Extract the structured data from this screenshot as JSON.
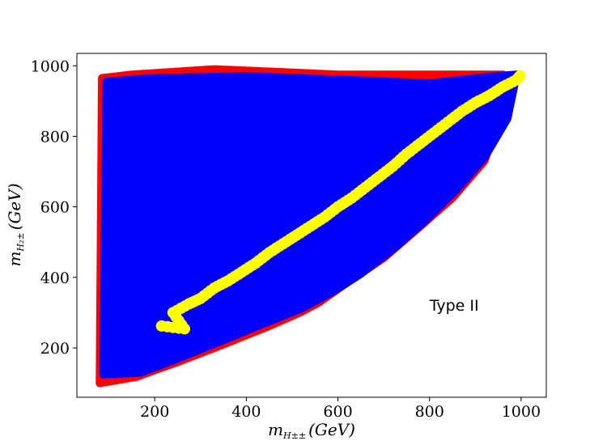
{
  "chart_data": {
    "type": "scatter",
    "title": "",
    "xlabel": {
      "base": "m",
      "sub": "H±±",
      "unit": "(GeV)"
    },
    "ylabel": {
      "base": "m",
      "sub": "H₂±",
      "unit": "(GeV)"
    },
    "xlim": [
      30,
      1055
    ],
    "ylim": [
      60,
      1035
    ],
    "xticks": [
      200,
      400,
      600,
      800,
      1000
    ],
    "yticks": [
      200,
      400,
      600,
      800,
      1000
    ],
    "grid": false,
    "legend": null,
    "annotation": {
      "text": "Type II",
      "x": 800,
      "y": 305
    },
    "series": [
      {
        "color": "#ff0000",
        "description": "filled region (back layer)",
        "region": [
          [
            80,
            100
          ],
          [
            160,
            118
          ],
          [
            250,
            160
          ],
          [
            350,
            210
          ],
          [
            450,
            262
          ],
          [
            520,
            302
          ],
          [
            560,
            330
          ],
          [
            620,
            385
          ],
          [
            700,
            455
          ],
          [
            780,
            545
          ],
          [
            850,
            625
          ],
          [
            920,
            730
          ],
          [
            980,
            960
          ],
          [
            960,
            975
          ],
          [
            600,
            975
          ],
          [
            330,
            990
          ],
          [
            150,
            975
          ],
          [
            85,
            965
          ]
        ]
      },
      {
        "color": "#0000ff",
        "description": "filled region (middle layer)",
        "region": [
          [
            88,
            125
          ],
          [
            170,
            130
          ],
          [
            260,
            175
          ],
          [
            350,
            222
          ],
          [
            440,
            270
          ],
          [
            520,
            312
          ],
          [
            590,
            360
          ],
          [
            650,
            410
          ],
          [
            720,
            480
          ],
          [
            790,
            560
          ],
          [
            860,
            650
          ],
          [
            920,
            740
          ],
          [
            970,
            850
          ],
          [
            990,
            975
          ],
          [
            940,
            970
          ],
          [
            800,
            950
          ],
          [
            620,
            960
          ],
          [
            400,
            970
          ],
          [
            200,
            965
          ],
          [
            95,
            955
          ]
        ]
      },
      {
        "color": "#ffff00",
        "description": "points (front layer)",
        "points": [
          [
            215,
            262
          ],
          [
            265,
            254
          ],
          [
            240,
            300
          ],
          [
            275,
            325
          ],
          [
            300,
            340
          ],
          [
            330,
            370
          ],
          [
            360,
            390
          ],
          [
            390,
            415
          ],
          [
            420,
            440
          ],
          [
            450,
            470
          ],
          [
            480,
            495
          ],
          [
            510,
            520
          ],
          [
            540,
            545
          ],
          [
            570,
            570
          ],
          [
            600,
            600
          ],
          [
            630,
            625
          ],
          [
            660,
            655
          ],
          [
            690,
            685
          ],
          [
            720,
            715
          ],
          [
            750,
            750
          ],
          [
            780,
            780
          ],
          [
            810,
            810
          ],
          [
            840,
            840
          ],
          [
            870,
            870
          ],
          [
            900,
            895
          ],
          [
            930,
            915
          ],
          [
            960,
            940
          ],
          [
            990,
            960
          ],
          [
            1000,
            975
          ]
        ]
      }
    ]
  }
}
